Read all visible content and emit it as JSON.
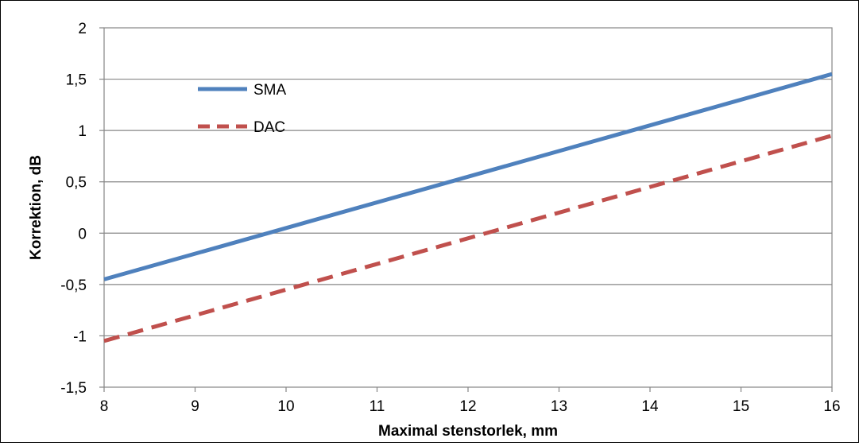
{
  "chart_data": {
    "type": "line",
    "xlabel": "Maximal stenstorlek, mm",
    "ylabel": "Korrektion, dB",
    "xlim": [
      8,
      16
    ],
    "ylim": [
      -1.5,
      2
    ],
    "x_ticks": [
      "8",
      "9",
      "10",
      "11",
      "12",
      "13",
      "14",
      "15",
      "16"
    ],
    "y_ticks": [
      "2",
      "1,5",
      "1",
      "0,5",
      "0",
      "-0,5",
      "-1",
      "-1,5"
    ],
    "grid": "horizontal",
    "legend_position": "top-left",
    "series": [
      {
        "name": "SMA",
        "color": "#4f81bd",
        "style": "solid",
        "x": [
          8,
          16
        ],
        "y": [
          -0.45,
          1.55
        ]
      },
      {
        "name": "DAC",
        "color": "#c0504d",
        "style": "dashed",
        "x": [
          8,
          16
        ],
        "y": [
          -1.05,
          0.95
        ]
      }
    ]
  }
}
